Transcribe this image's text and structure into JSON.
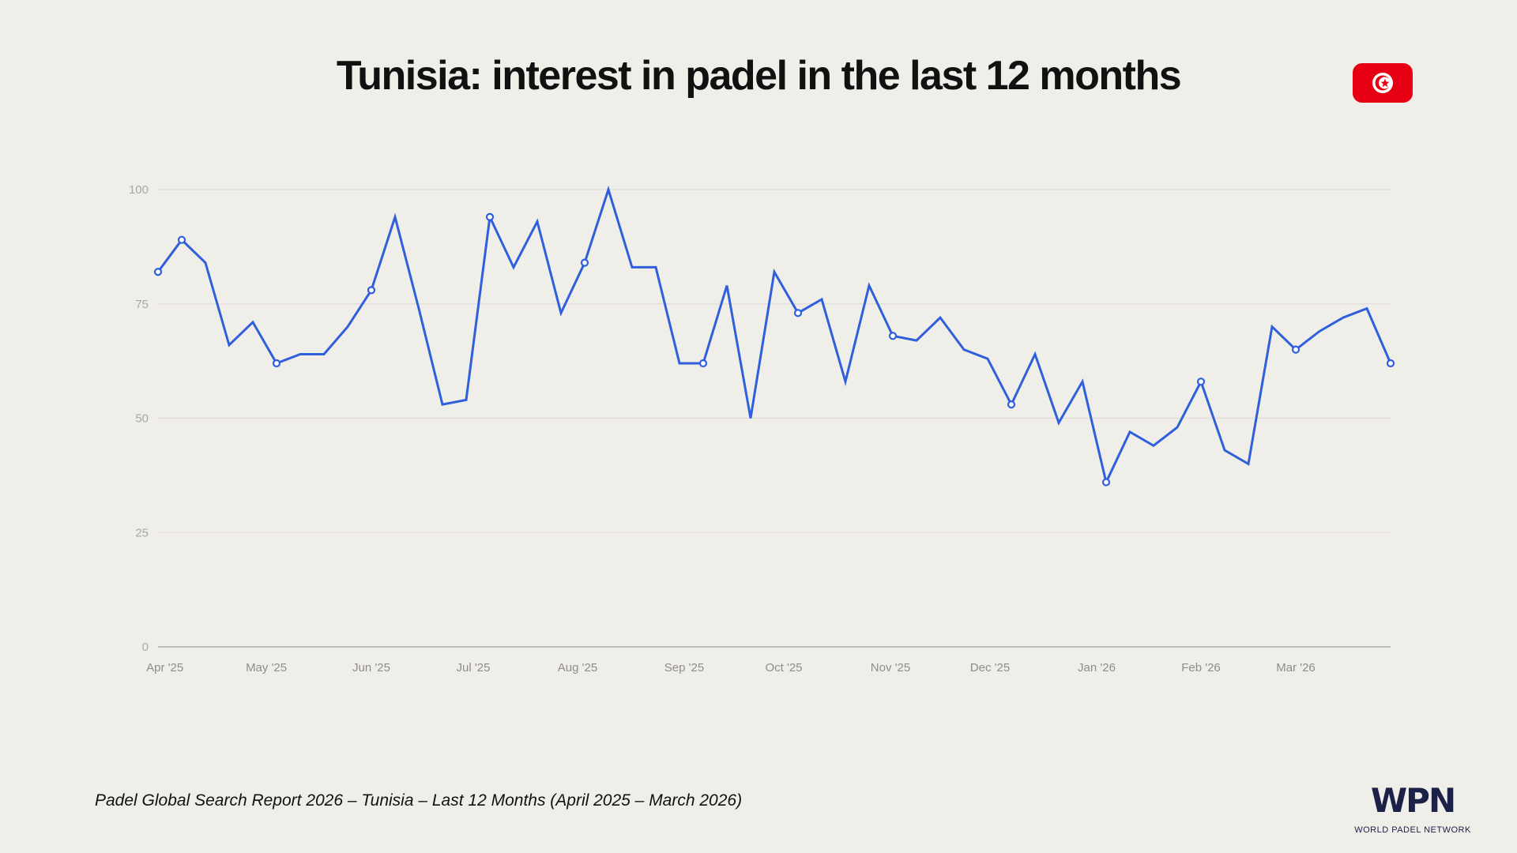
{
  "title": "Tunisia: interest in padel in the last 12 months",
  "flag": {
    "icon": "tunisia-flag-icon",
    "color": "#e70013"
  },
  "footer": "Padel Global Search Report 2026 – Tunisia – Last 12 Months (April 2025 – March 2026)",
  "logo": {
    "mark": "WPN",
    "text": "WORLD PADEL NETWORK"
  },
  "chart_data": {
    "type": "line",
    "title": "",
    "xlabel": "",
    "ylabel": "",
    "ylim": [
      0,
      100
    ],
    "yticks": [
      0,
      25,
      50,
      75,
      100
    ],
    "grid": true,
    "line_color": "#2f5fdb",
    "xtick_labels": [
      "Apr '25",
      "May '25",
      "Jun '25",
      "Jul '25",
      "Aug '25",
      "Sep '25",
      "Oct '25",
      "Nov '25",
      "Dec '25",
      "Jan '26",
      "Feb '26",
      "Mar '26"
    ],
    "series": [
      {
        "values": [
          82,
          89,
          84,
          66,
          71,
          62,
          64,
          64,
          70,
          78,
          94,
          74,
          53,
          54,
          94,
          83,
          93,
          73,
          84,
          100,
          83,
          83,
          62,
          62,
          79,
          50,
          82,
          73,
          76,
          58,
          79,
          68,
          67,
          72,
          65,
          63,
          53,
          64,
          49,
          58,
          36,
          47,
          44,
          48,
          58,
          43,
          40,
          70,
          65,
          69,
          72,
          74,
          62
        ],
        "marked_points": [
          0,
          1,
          5,
          9,
          14,
          18,
          23,
          27,
          31,
          36,
          40,
          44,
          48,
          52
        ]
      }
    ]
  }
}
